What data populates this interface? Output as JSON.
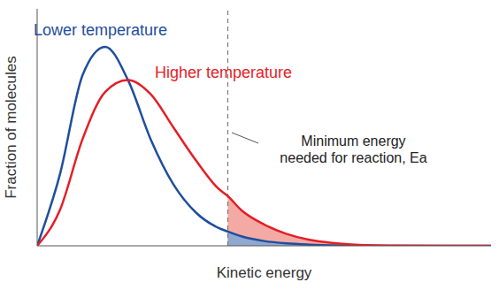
{
  "chart_data": {
    "type": "line",
    "x_label": "Kinetic energy",
    "y_label": "Fraction of molecules",
    "x": [
      0,
      0.5,
      1,
      1.5,
      2,
      2.5,
      3,
      3.5,
      4,
      4.2,
      4.5,
      5,
      5.5,
      6,
      6.5,
      7,
      7.5,
      8,
      9,
      10
    ],
    "series": [
      {
        "name": "Lower temperature",
        "color": "#1f4e9c",
        "values": [
          0,
          0.3,
          0.72,
          0.84,
          0.7,
          0.45,
          0.26,
          0.14,
          0.075,
          0.06,
          0.04,
          0.02,
          0.01,
          0.005,
          0.002,
          0.001,
          0,
          0,
          0,
          0
        ]
      },
      {
        "name": "Higher temperature",
        "color": "#e41e26",
        "values": [
          0,
          0.15,
          0.45,
          0.65,
          0.7,
          0.64,
          0.5,
          0.36,
          0.24,
          0.21,
          0.15,
          0.09,
          0.05,
          0.025,
          0.012,
          0.005,
          0.002,
          0.001,
          0,
          0
        ]
      }
    ],
    "xlim": [
      0,
      10
    ],
    "ylim": [
      0,
      1
    ],
    "xticks": [],
    "yticks": [],
    "tick_labels": false,
    "annotations": [
      {
        "text": "Minimum energy\nneeded for reaction, Ea",
        "x": 4.2
      }
    ]
  }
}
